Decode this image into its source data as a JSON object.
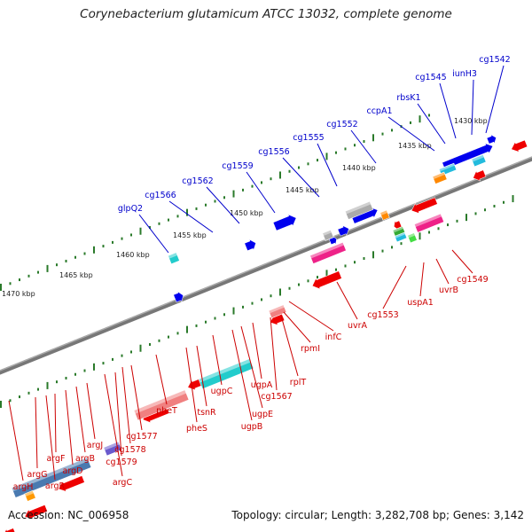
{
  "title": "Corynebacterium glutamicum ATCC 13032, complete genome",
  "accession": "Accession: NC_006958",
  "summary": "Topology: circular; Length: 3,282,708 bp; Genes: 3,142",
  "colors": {
    "forward": "#0000ee",
    "reverse": "#ee0000",
    "backbone": "#777777",
    "tick": "#2a7a2a",
    "forward_label": "#0000cc",
    "reverse_label": "#cc0000"
  },
  "kbp_labels": [
    "1430 kbp",
    "1435 kbp",
    "1440 kbp",
    "1445 kbp",
    "1450 kbp",
    "1455 kbp",
    "1460 kbp",
    "1465 kbp",
    "1470 kbp"
  ],
  "forward_genes": [
    "cg1542",
    "iunH3",
    "cg1545",
    "rbsK1",
    "ccpA1",
    "cg1552",
    "cg1555",
    "cg1556",
    "cg1559",
    "cg1562",
    "cg1566",
    "glpQ2"
  ],
  "reverse_genes": [
    "cg1549",
    "uvrB",
    "uspA1",
    "cg1553",
    "uvrA",
    "infC",
    "rpmI",
    "rplT",
    "cg1567",
    "ugpA",
    "ugpE",
    "ugpB",
    "ugpC",
    "tsnR",
    "pheS",
    "pheT",
    "cg1577",
    "cg1578",
    "cg1579",
    "argC",
    "argJ",
    "argB",
    "argD",
    "argF",
    "argR",
    "argG",
    "argH"
  ]
}
